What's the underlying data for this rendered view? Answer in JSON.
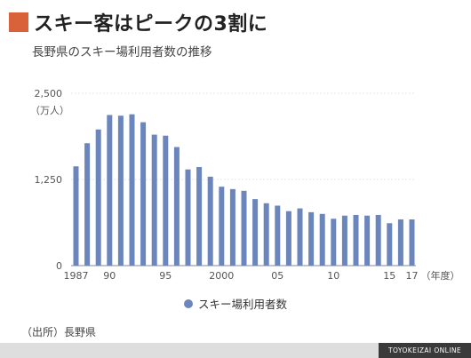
{
  "header": {
    "title": "スキー客はピークの3割に",
    "subtitle": "長野県のスキー場利用者数の推移",
    "accent_color": "#d9623b"
  },
  "chart_data": {
    "type": "bar",
    "series": [
      {
        "name": "スキー場利用者数",
        "color": "#6b85bd",
        "x": [
          1987,
          1988,
          1989,
          1990,
          1991,
          1992,
          1993,
          1994,
          1995,
          1996,
          1997,
          1998,
          1999,
          2000,
          2001,
          2002,
          2003,
          2004,
          2005,
          2006,
          2007,
          2008,
          2009,
          2010,
          2011,
          2012,
          2013,
          2014,
          2015,
          2016,
          2017
        ],
        "values": [
          1440,
          1775,
          1975,
          2185,
          2175,
          2195,
          2080,
          1900,
          1885,
          1720,
          1395,
          1430,
          1290,
          1145,
          1110,
          1085,
          965,
          905,
          870,
          790,
          830,
          775,
          750,
          680,
          725,
          735,
          725,
          735,
          615,
          670,
          670
        ]
      }
    ],
    "unit_label": "（万人）",
    "ylim": [
      0,
      2500
    ],
    "y_ticks": [
      {
        "value": 0,
        "label": "0"
      },
      {
        "value": 1250,
        "label": "1,250"
      },
      {
        "value": 2500,
        "label": "2,500"
      }
    ],
    "x_tick_labels": [
      {
        "x": 1987,
        "label": "1987"
      },
      {
        "x": 1990,
        "label": "90"
      },
      {
        "x": 1995,
        "label": "95"
      },
      {
        "x": 2000,
        "label": "2000"
      },
      {
        "x": 2005,
        "label": "05"
      },
      {
        "x": 2010,
        "label": "10"
      },
      {
        "x": 2015,
        "label": "15"
      },
      {
        "x": 2017,
        "label": "17"
      }
    ],
    "x_axis_unit": "（年度）",
    "grid": true,
    "legend_position": "bottom-center"
  },
  "legend": {
    "label": "スキー場利用者数"
  },
  "source": "（出所）長野県",
  "footer": {
    "brand": "TOYOKEIZAI ONLINE"
  }
}
